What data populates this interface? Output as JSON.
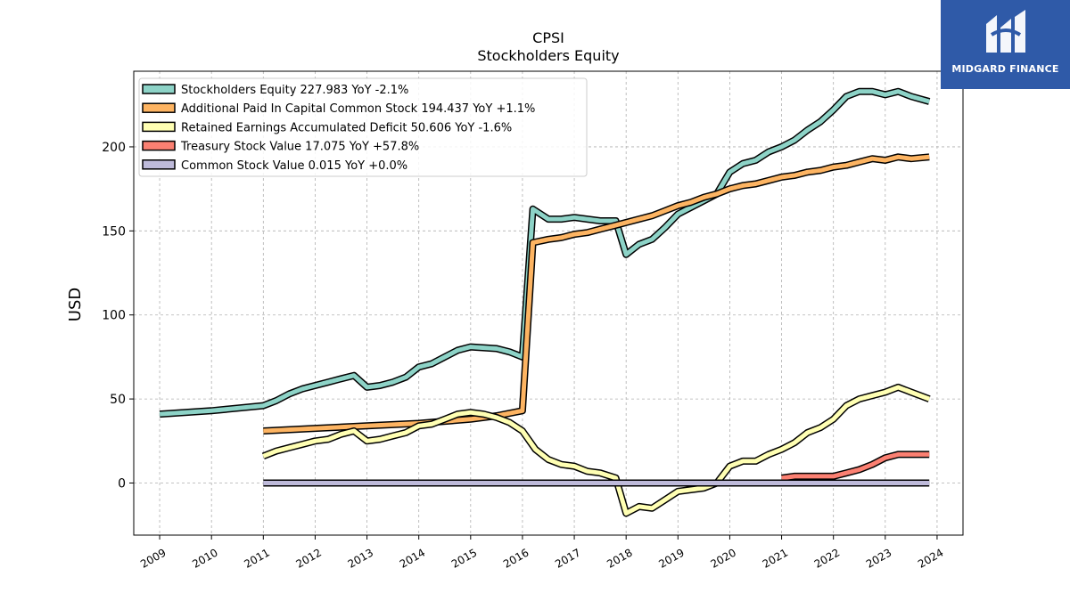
{
  "brand": {
    "name": "MIDGARD FINANCE",
    "logo_icon": "midgard-logo-icon",
    "color": "#2f5aa8"
  },
  "chart_data": {
    "type": "line",
    "title": "CPSI",
    "subtitle": "Stockholders  Equity",
    "ylabel": "USD",
    "xlabel": "",
    "xlim": [
      2008.5,
      2024.5
    ],
    "ylim": [
      -31,
      245
    ],
    "x_ticks": [
      "2009",
      "2010",
      "2011",
      "2012",
      "2013",
      "2014",
      "2015",
      "2016",
      "2017",
      "2018",
      "2019",
      "2020",
      "2021",
      "2022",
      "2023",
      "2024"
    ],
    "y_ticks": [
      0,
      50,
      100,
      150,
      200
    ],
    "grid": true,
    "legend_position": "top-left",
    "series": [
      {
        "name": "Stockholders Equity  227.983 YoY -2.1%",
        "color": "#8dd3c7",
        "points": [
          [
            2009.0,
            41
          ],
          [
            2010.0,
            43
          ],
          [
            2011.0,
            46
          ],
          [
            2011.25,
            49
          ],
          [
            2011.5,
            53
          ],
          [
            2011.75,
            56
          ],
          [
            2012.0,
            58
          ],
          [
            2012.25,
            60
          ],
          [
            2012.5,
            62
          ],
          [
            2012.75,
            64
          ],
          [
            2013.0,
            57
          ],
          [
            2013.25,
            58
          ],
          [
            2013.5,
            60
          ],
          [
            2013.75,
            63
          ],
          [
            2014.0,
            69
          ],
          [
            2014.25,
            71
          ],
          [
            2014.5,
            75
          ],
          [
            2014.75,
            79
          ],
          [
            2015.0,
            81
          ],
          [
            2015.5,
            80
          ],
          [
            2015.75,
            78
          ],
          [
            2016.0,
            75
          ],
          [
            2016.2,
            163
          ],
          [
            2016.5,
            157
          ],
          [
            2016.75,
            157
          ],
          [
            2017.0,
            158
          ],
          [
            2017.25,
            157
          ],
          [
            2017.5,
            156
          ],
          [
            2017.8,
            156
          ],
          [
            2018.0,
            136
          ],
          [
            2018.25,
            142
          ],
          [
            2018.5,
            145
          ],
          [
            2018.75,
            152
          ],
          [
            2019.0,
            160
          ],
          [
            2019.25,
            164
          ],
          [
            2019.5,
            168
          ],
          [
            2019.75,
            172
          ],
          [
            2020.0,
            185
          ],
          [
            2020.25,
            190
          ],
          [
            2020.5,
            192
          ],
          [
            2020.75,
            197
          ],
          [
            2021.0,
            200
          ],
          [
            2021.25,
            204
          ],
          [
            2021.5,
            210
          ],
          [
            2021.75,
            215
          ],
          [
            2022.0,
            222
          ],
          [
            2022.25,
            230
          ],
          [
            2022.5,
            233
          ],
          [
            2022.75,
            233
          ],
          [
            2023.0,
            231
          ],
          [
            2023.25,
            233
          ],
          [
            2023.5,
            230
          ],
          [
            2023.85,
            227
          ]
        ]
      },
      {
        "name": "Additional Paid In Capital Common Stock  194.437 YoY +1.1%",
        "color": "#fdb462",
        "points": [
          [
            2011.0,
            31
          ],
          [
            2012.0,
            32.5
          ],
          [
            2013.0,
            34
          ],
          [
            2014.0,
            35.5
          ],
          [
            2015.0,
            38
          ],
          [
            2015.5,
            40
          ],
          [
            2016.0,
            43
          ],
          [
            2016.2,
            143
          ],
          [
            2016.5,
            145
          ],
          [
            2016.75,
            146
          ],
          [
            2017.0,
            148
          ],
          [
            2017.25,
            149
          ],
          [
            2017.5,
            151
          ],
          [
            2017.75,
            153
          ],
          [
            2018.0,
            155
          ],
          [
            2018.25,
            157
          ],
          [
            2018.5,
            159
          ],
          [
            2018.75,
            162
          ],
          [
            2019.0,
            165
          ],
          [
            2019.25,
            167
          ],
          [
            2019.5,
            170
          ],
          [
            2019.75,
            172
          ],
          [
            2020.0,
            175
          ],
          [
            2020.25,
            177
          ],
          [
            2020.5,
            178
          ],
          [
            2020.75,
            180
          ],
          [
            2021.0,
            182
          ],
          [
            2021.25,
            183
          ],
          [
            2021.5,
            185
          ],
          [
            2021.75,
            186
          ],
          [
            2022.0,
            188
          ],
          [
            2022.25,
            189
          ],
          [
            2022.5,
            191
          ],
          [
            2022.75,
            193
          ],
          [
            2023.0,
            192
          ],
          [
            2023.25,
            194
          ],
          [
            2023.5,
            193
          ],
          [
            2023.85,
            194
          ]
        ]
      },
      {
        "name": "Retained Earnings Accumulated Deficit  50.606 YoY -1.6%",
        "color": "#ffffb3",
        "points": [
          [
            2011.0,
            16
          ],
          [
            2011.25,
            19
          ],
          [
            2011.5,
            21
          ],
          [
            2011.75,
            23
          ],
          [
            2012.0,
            25
          ],
          [
            2012.25,
            26
          ],
          [
            2012.5,
            29
          ],
          [
            2012.75,
            31
          ],
          [
            2013.0,
            25
          ],
          [
            2013.25,
            26
          ],
          [
            2013.5,
            28
          ],
          [
            2013.75,
            30
          ],
          [
            2014.0,
            34
          ],
          [
            2014.25,
            35
          ],
          [
            2014.5,
            38
          ],
          [
            2014.75,
            41
          ],
          [
            2015.0,
            42
          ],
          [
            2015.25,
            41
          ],
          [
            2015.5,
            39
          ],
          [
            2015.75,
            36
          ],
          [
            2016.0,
            31
          ],
          [
            2016.25,
            20
          ],
          [
            2016.5,
            14
          ],
          [
            2016.75,
            11
          ],
          [
            2017.0,
            10
          ],
          [
            2017.25,
            7
          ],
          [
            2017.5,
            6
          ],
          [
            2017.8,
            3
          ],
          [
            2018.0,
            -18
          ],
          [
            2018.25,
            -14
          ],
          [
            2018.5,
            -15
          ],
          [
            2018.75,
            -10
          ],
          [
            2019.0,
            -5
          ],
          [
            2019.25,
            -4
          ],
          [
            2019.5,
            -3
          ],
          [
            2019.75,
            0
          ],
          [
            2020.0,
            10
          ],
          [
            2020.25,
            13
          ],
          [
            2020.5,
            13
          ],
          [
            2020.75,
            17
          ],
          [
            2021.0,
            20
          ],
          [
            2021.25,
            24
          ],
          [
            2021.5,
            30
          ],
          [
            2021.75,
            33
          ],
          [
            2022.0,
            38
          ],
          [
            2022.25,
            46
          ],
          [
            2022.5,
            50
          ],
          [
            2022.75,
            52
          ],
          [
            2023.0,
            54
          ],
          [
            2023.25,
            57
          ],
          [
            2023.5,
            54
          ],
          [
            2023.85,
            50
          ]
        ]
      },
      {
        "name": "Treasury Stock Value  17.075 YoY +57.8%",
        "color": "#fb8072",
        "points": [
          [
            2021.0,
            3
          ],
          [
            2021.25,
            4
          ],
          [
            2021.5,
            4
          ],
          [
            2022.0,
            4
          ],
          [
            2022.25,
            6
          ],
          [
            2022.5,
            8
          ],
          [
            2022.75,
            11
          ],
          [
            2023.0,
            15
          ],
          [
            2023.25,
            17
          ],
          [
            2023.85,
            17
          ]
        ]
      },
      {
        "name": "Common Stock Value  0.015 YoY +0.0%",
        "color": "#bebada",
        "points": [
          [
            2011.0,
            0
          ],
          [
            2023.85,
            0
          ]
        ]
      }
    ]
  }
}
